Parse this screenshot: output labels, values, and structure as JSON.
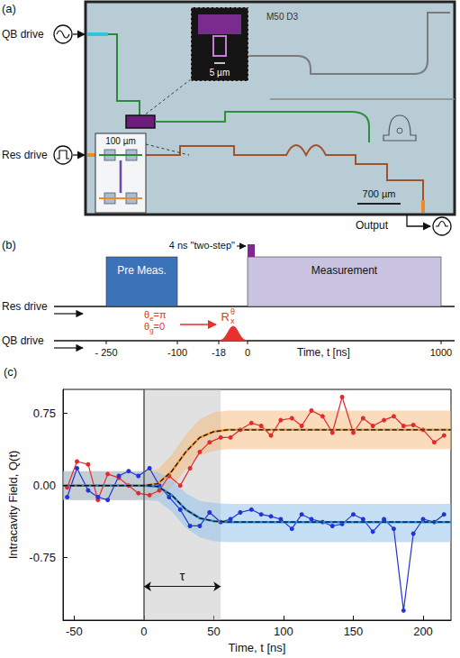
{
  "panel_a": {
    "label": "(a)",
    "inputs": [
      "QB drive",
      "Res drive"
    ],
    "output": "Output",
    "scale_bars": [
      "5 µm",
      "100 µm",
      "700 µm"
    ],
    "chip_label": "M50 D3"
  },
  "panel_b": {
    "label": "(b)",
    "rows": [
      "Res drive",
      "QB drive"
    ],
    "boxes": [
      {
        "label": "Pre Meas.",
        "start": -250,
        "end": -100,
        "color": "#3b72b8"
      },
      {
        "label": "Measurement",
        "start": 0,
        "end": 1000,
        "color": "#c9c3e1"
      }
    ],
    "step": {
      "label": "4 ns \"two-step\"",
      "start": 0,
      "end": 4,
      "color": "#7b2a8e"
    },
    "qb_pulse": {
      "start": -18,
      "end": 0,
      "color": "#e8302c",
      "label": {
        "base": "R",
        "sub": "x",
        "sup": "θ"
      }
    },
    "rotations": [
      [
        "θ",
        "e",
        "=π"
      ],
      [
        "θ",
        "g",
        "=0"
      ]
    ],
    "xlabel": "Time, t [ns]",
    "xticks": [
      {
        "value": -250,
        "label": "- 250"
      },
      -100,
      -18,
      0,
      1000
    ]
  },
  "chart_data": {
    "type": "line",
    "label": "(c)",
    "xlabel": "Time, t [ns]",
    "ylabel": "Intracavity Field, Q(t)",
    "xlim": [
      -58,
      220
    ],
    "ylim": [
      -1.4,
      1.0
    ],
    "xticks": [
      -50,
      0,
      50,
      100,
      150,
      200
    ],
    "yticks": [
      -0.75,
      {
        "value": 0,
        "label": "0.00"
      },
      0.75
    ],
    "grid": false,
    "bands": [
      {
        "color": "#f6b77a",
        "x": [
          -58,
          0,
          10,
          20,
          30,
          40,
          50,
          60,
          80,
          220
        ],
        "lower": [
          -0.15,
          -0.15,
          -0.13,
          -0.02,
          0.17,
          0.31,
          0.36,
          0.38,
          0.38,
          0.38
        ],
        "upper": [
          0.15,
          0.15,
          0.17,
          0.32,
          0.53,
          0.69,
          0.76,
          0.78,
          0.78,
          0.78
        ]
      },
      {
        "color": "#8fc0ec",
        "x": [
          -58,
          0,
          10,
          20,
          30,
          40,
          50,
          60,
          80,
          220
        ],
        "lower": [
          -0.15,
          -0.15,
          -0.16,
          -0.27,
          -0.44,
          -0.54,
          -0.58,
          -0.59,
          -0.59,
          -0.59
        ],
        "upper": [
          0.15,
          0.15,
          0.14,
          0.06,
          -0.08,
          -0.16,
          -0.18,
          -0.19,
          -0.19,
          -0.19
        ]
      }
    ],
    "shaded_region": {
      "from": 0,
      "to": 55,
      "color": "#bdbdbd"
    },
    "vline": {
      "x": 0,
      "color": "#555555"
    },
    "annotation": {
      "text": "τ",
      "from": 0,
      "to": 55,
      "y": -1.05
    },
    "series": [
      {
        "type": "line",
        "color": "#e32b2b",
        "marker": "circle",
        "x": [
          -55,
          -48,
          -40,
          -33,
          -26,
          -18,
          -11,
          -4,
          4,
          11,
          18,
          26,
          33,
          40,
          47,
          55,
          62,
          69,
          77,
          84,
          91,
          98,
          106,
          113,
          120,
          128,
          135,
          142,
          150,
          157,
          164,
          172,
          179,
          186,
          193,
          200,
          208,
          215
        ],
        "values": [
          -0.02,
          0.25,
          0.22,
          -0.15,
          0.12,
          0.08,
          0.0,
          -0.08,
          -0.1,
          -0.05,
          0.1,
          0.0,
          0.18,
          0.35,
          0.45,
          0.5,
          0.5,
          0.58,
          0.65,
          0.62,
          0.52,
          0.68,
          0.7,
          0.62,
          0.78,
          0.72,
          0.55,
          0.92,
          0.55,
          0.7,
          0.62,
          0.68,
          0.72,
          0.62,
          0.63,
          0.58,
          0.45,
          0.52
        ]
      },
      {
        "type": "line",
        "color": "#1f35d8",
        "marker": "circle",
        "x": [
          -55,
          -48,
          -40,
          -33,
          -26,
          -18,
          -11,
          -4,
          4,
          11,
          18,
          26,
          33,
          40,
          47,
          55,
          62,
          69,
          77,
          84,
          91,
          98,
          106,
          113,
          120,
          128,
          135,
          142,
          150,
          157,
          164,
          172,
          179,
          186,
          193,
          200,
          208,
          215
        ],
        "values": [
          -0.12,
          0.18,
          -0.05,
          -0.12,
          -0.15,
          0.1,
          0.15,
          0.1,
          0.18,
          0.0,
          -0.12,
          -0.25,
          -0.42,
          -0.42,
          -0.28,
          -0.38,
          -0.35,
          -0.28,
          -0.25,
          -0.3,
          -0.32,
          -0.35,
          -0.45,
          -0.3,
          -0.35,
          -0.38,
          -0.42,
          -0.4,
          -0.3,
          -0.35,
          -0.48,
          -0.35,
          -0.45,
          -1.3,
          -0.5,
          -0.35,
          -0.38,
          -0.3
        ]
      },
      {
        "type": "fit",
        "color": "#f39322",
        "line_style": "dashed",
        "x": [
          -58,
          0,
          10,
          20,
          30,
          40,
          50,
          60,
          80,
          220
        ],
        "values": [
          0,
          0,
          0.02,
          0.15,
          0.35,
          0.5,
          0.56,
          0.58,
          0.58,
          0.58
        ]
      },
      {
        "type": "fit",
        "color": "#2f86d6",
        "line_style": "dashed",
        "x": [
          -58,
          0,
          10,
          20,
          30,
          40,
          50,
          60,
          80,
          220
        ],
        "values": [
          0,
          0,
          -0.01,
          -0.1,
          -0.25,
          -0.34,
          -0.37,
          -0.38,
          -0.38,
          -0.38
        ]
      }
    ]
  }
}
